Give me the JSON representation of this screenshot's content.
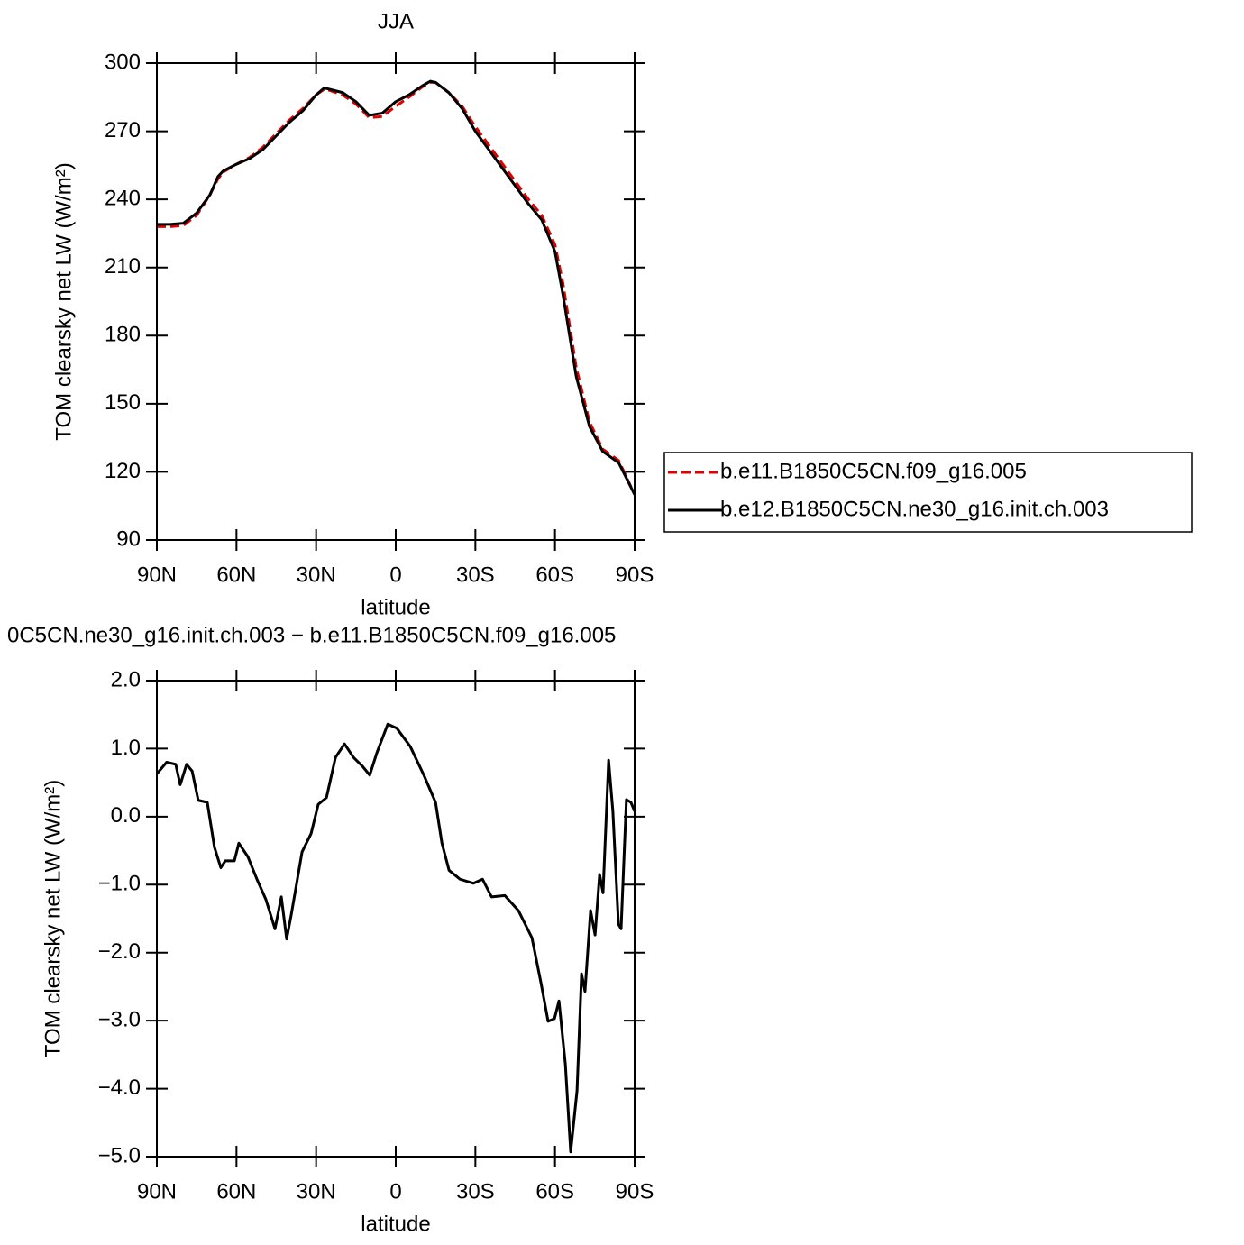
{
  "chart_data": [
    {
      "type": "line",
      "title": "JJA",
      "xlabel": "latitude",
      "ylabel": "TOM clearsky net LW (W/m²)",
      "x": [
        90,
        85,
        80,
        75,
        70,
        67,
        65,
        60,
        55,
        50,
        45,
        40,
        35,
        30,
        27,
        25,
        20,
        15,
        10,
        5,
        0,
        -5,
        -10,
        -13,
        -15,
        -20,
        -25,
        -30,
        -35,
        -40,
        -45,
        -50,
        -55,
        -60,
        -63,
        -68,
        -73,
        -78,
        -84,
        -90
      ],
      "series": [
        {
          "name": "b.e11.B1850C5CN.f09_g16.005",
          "color": "#e00000",
          "dash": true,
          "values": [
            228,
            228,
            228.5,
            233,
            242,
            249,
            252,
            255.5,
            258.5,
            263,
            269,
            275,
            280,
            286,
            288.5,
            288,
            286,
            282,
            276,
            276.5,
            281,
            285,
            289.5,
            291.5,
            291.5,
            287,
            281,
            272,
            264,
            256,
            248,
            240,
            233,
            220,
            203,
            166,
            142,
            130,
            125,
            110
          ]
        },
        {
          "name": "b.e12.B1850C5CN.ne30_g16.init.ch.003",
          "color": "#000000",
          "dash": false,
          "values": [
            229,
            229,
            229.5,
            234,
            242,
            250,
            252.5,
            255.5,
            258,
            262,
            268,
            274,
            279,
            286,
            289,
            288.5,
            287,
            283,
            277,
            278,
            283,
            286,
            290,
            292,
            291.5,
            287,
            280,
            270,
            262,
            254,
            246,
            238,
            231,
            217,
            198,
            162,
            140,
            129,
            124,
            110
          ]
        }
      ],
      "xlim": [
        90,
        -90
      ],
      "xticks": [
        {
          "value": 90,
          "label": "90N"
        },
        {
          "value": 60,
          "label": "60N"
        },
        {
          "value": 30,
          "label": "30N"
        },
        0,
        {
          "value": -30,
          "label": "30S"
        },
        {
          "value": -60,
          "label": "60S"
        },
        {
          "value": -90,
          "label": "90S"
        }
      ],
      "ylim": [
        90,
        300
      ],
      "yticks": [
        90,
        120,
        150,
        180,
        210,
        240,
        270,
        300
      ],
      "legend": "right"
    },
    {
      "type": "line",
      "title": "0C5CN.ne30_g16.init.ch.003 − b.e11.B1850C5CN.f09_g16.005",
      "xlabel": "latitude",
      "ylabel": "TOM clearsky net LW (W/m²)",
      "x": [
        90,
        86.3,
        82.9,
        81.2,
        78.8,
        76.7,
        74.4,
        71,
        68.3,
        65.9,
        64.2,
        60.8,
        59.1,
        55.7,
        52.3,
        48.9,
        45.5,
        43.1,
        41.1,
        39.4,
        35.3,
        31.9,
        29.2,
        26.1,
        22.7,
        19.3,
        15.9,
        12.5,
        9.8,
        7.1,
        3.0,
        -0.4,
        -5.5,
        -10.6,
        -15,
        -17.4,
        -20.1,
        -24.2,
        -29.3,
        -32.7,
        -36.1,
        -41.1,
        -46.2,
        -51.3,
        -54.7,
        -57.4,
        -59.8,
        -61.5,
        -63.9,
        -65.9,
        -68.3,
        -70,
        -71.3,
        -73.4,
        -75.1,
        -76.8,
        -78.1,
        -80.2,
        -81.8,
        -83.9,
        -84.9,
        -86.9,
        -88.6,
        -90
      ],
      "series": [
        {
          "name": null,
          "color": "#000000",
          "dash": false,
          "values": [
            0.63,
            0.8,
            0.77,
            0.47,
            0.77,
            0.67,
            0.24,
            0.21,
            -0.45,
            -0.75,
            -0.65,
            -0.65,
            -0.39,
            -0.59,
            -0.92,
            -1.22,
            -1.65,
            -1.18,
            -1.8,
            -1.45,
            -0.52,
            -0.25,
            0.18,
            0.28,
            0.87,
            1.07,
            0.87,
            0.74,
            0.61,
            0.94,
            1.36,
            1.3,
            1.03,
            0.61,
            0.21,
            -0.39,
            -0.79,
            -0.92,
            -0.98,
            -0.92,
            -1.18,
            -1.16,
            -1.38,
            -1.78,
            -2.44,
            -3.01,
            -2.97,
            -2.71,
            -3.64,
            -4.93,
            -4.03,
            -2.31,
            -2.57,
            -1.38,
            -1.74,
            -0.85,
            -1.12,
            0.83,
            0.08,
            -1.58,
            -1.65,
            0.25,
            0.21,
            0.08
          ]
        }
      ],
      "xlim": [
        90,
        -90
      ],
      "xticks": [
        {
          "value": 90,
          "label": "90N"
        },
        {
          "value": 60,
          "label": "60N"
        },
        {
          "value": 30,
          "label": "30N"
        },
        0,
        {
          "value": -30,
          "label": "30S"
        },
        {
          "value": -60,
          "label": "60S"
        },
        {
          "value": -90,
          "label": "90S"
        }
      ],
      "ylim": [
        -5,
        2
      ],
      "yticks": [
        {
          "value": -5,
          "label": "−5.0"
        },
        {
          "value": -4,
          "label": "−4.0"
        },
        {
          "value": -3,
          "label": "−3.0"
        },
        {
          "value": -2,
          "label": "−2.0"
        },
        {
          "value": -1,
          "label": "−1.0"
        },
        {
          "value": 0,
          "label": "0.0"
        },
        {
          "value": 1,
          "label": "1.0"
        },
        {
          "value": 2,
          "label": "2.0"
        }
      ]
    }
  ]
}
